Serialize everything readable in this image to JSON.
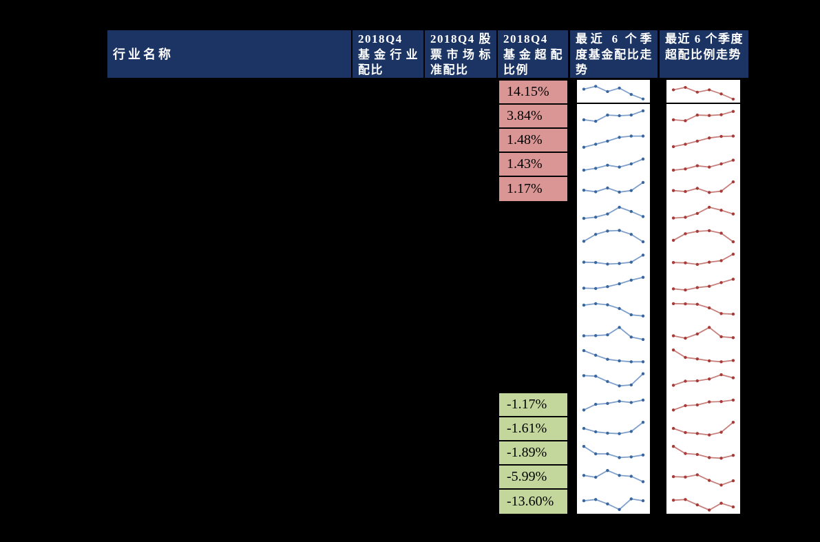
{
  "page": {
    "background": "#000000"
  },
  "table": {
    "header": {
      "industry": "行业名称",
      "fund_alloc": "2018Q4 基金行业配比",
      "market_std": "2018Q4 股票市场标准配比",
      "fund_over": "2018Q4 基金超配比例",
      "fund_trend": "最近 6 个季度基金配比走势",
      "over_trend": "最近 6 个季度超配比例走势"
    }
  },
  "chart_data": {
    "type": "table",
    "columns": [
      "行业名称",
      "2018Q4 基金行业配比",
      "2018Q4 股票市场标准配比",
      "2018Q4 基金超配比例",
      "最近 6 个季度基金配比走势",
      "最近 6 个季度超配比例走势"
    ],
    "sparkline_type": "line",
    "sparkline_points": 6,
    "rows": [
      {
        "overweight_ratio": "14.15%",
        "highlight": "pink",
        "fund_trend": [
          0.62,
          0.78,
          0.48,
          0.68,
          0.32,
          0.06
        ],
        "overweight_trend": [
          0.58,
          0.72,
          0.45,
          0.58,
          0.35,
          0.05
        ]
      },
      {
        "overweight_ratio": "3.84%",
        "highlight": "pink",
        "fund_trend": [
          0.3,
          0.22,
          0.55,
          0.52,
          0.55,
          0.78
        ],
        "overweight_trend": [
          0.3,
          0.25,
          0.55,
          0.53,
          0.57,
          0.75
        ]
      },
      {
        "overweight_ratio": "1.48%",
        "highlight": "pink",
        "fund_trend": [
          0.12,
          0.28,
          0.45,
          0.65,
          0.72,
          0.72
        ],
        "overweight_trend": [
          0.15,
          0.28,
          0.45,
          0.62,
          0.7,
          0.72
        ]
      },
      {
        "overweight_ratio": "1.43%",
        "highlight": "pink",
        "fund_trend": [
          0.18,
          0.28,
          0.45,
          0.35,
          0.52,
          0.78
        ],
        "overweight_trend": [
          0.18,
          0.25,
          0.42,
          0.35,
          0.52,
          0.72
        ]
      },
      {
        "overweight_ratio": "1.17%",
        "highlight": "pink",
        "fund_trend": [
          0.4,
          0.32,
          0.52,
          0.3,
          0.38,
          0.82
        ],
        "overweight_trend": [
          0.38,
          0.33,
          0.5,
          0.28,
          0.35,
          0.85
        ]
      },
      {
        "overweight_ratio": "",
        "highlight": "none",
        "fund_trend": [
          0.18,
          0.25,
          0.42,
          0.78,
          0.55,
          0.28
        ],
        "overweight_trend": [
          0.2,
          0.24,
          0.45,
          0.78,
          0.62,
          0.42
        ]
      },
      {
        "overweight_ratio": "",
        "highlight": "none",
        "fund_trend": [
          0.25,
          0.62,
          0.8,
          0.83,
          0.62,
          0.22
        ],
        "overweight_trend": [
          0.3,
          0.65,
          0.78,
          0.82,
          0.68,
          0.22
        ]
      },
      {
        "overweight_ratio": "",
        "highlight": "none",
        "fund_trend": [
          0.42,
          0.4,
          0.32,
          0.35,
          0.42,
          0.8
        ],
        "overweight_trend": [
          0.4,
          0.38,
          0.3,
          0.42,
          0.5,
          0.85
        ]
      },
      {
        "overweight_ratio": "",
        "highlight": "none",
        "fund_trend": [
          0.32,
          0.3,
          0.4,
          0.55,
          0.75,
          0.9
        ],
        "overweight_trend": [
          0.28,
          0.22,
          0.35,
          0.42,
          0.62,
          0.8
        ]
      },
      {
        "overweight_ratio": "",
        "highlight": "none",
        "fund_trend": [
          0.7,
          0.78,
          0.72,
          0.52,
          0.18,
          0.12
        ],
        "overweight_trend": [
          0.78,
          0.77,
          0.75,
          0.55,
          0.25,
          0.22
        ]
      },
      {
        "overweight_ratio": "",
        "highlight": "none",
        "fund_trend": [
          0.35,
          0.36,
          0.4,
          0.8,
          0.28,
          0.15
        ],
        "overweight_trend": [
          0.35,
          0.22,
          0.45,
          0.8,
          0.3,
          0.25
        ]
      },
      {
        "overweight_ratio": "",
        "highlight": "none",
        "fund_trend": [
          0.85,
          0.6,
          0.38,
          0.3,
          0.25,
          0.25
        ],
        "overweight_trend": [
          0.88,
          0.48,
          0.4,
          0.3,
          0.25,
          0.32
        ]
      },
      {
        "overweight_ratio": "",
        "highlight": "none",
        "fund_trend": [
          0.8,
          0.77,
          0.48,
          0.25,
          0.3,
          0.9
        ],
        "overweight_trend": [
          0.28,
          0.5,
          0.52,
          0.62,
          0.85,
          0.68
        ]
      },
      {
        "overweight_ratio": "-1.17%",
        "highlight": "green",
        "fund_trend": [
          0.25,
          0.55,
          0.6,
          0.72,
          0.65,
          0.78
        ],
        "overweight_trend": [
          0.25,
          0.48,
          0.52,
          0.68,
          0.7,
          0.78
        ]
      },
      {
        "overweight_ratio": "-1.61%",
        "highlight": "green",
        "fund_trend": [
          0.55,
          0.37,
          0.3,
          0.27,
          0.39,
          0.88
        ],
        "overweight_trend": [
          0.55,
          0.33,
          0.28,
          0.2,
          0.35,
          0.88
        ]
      },
      {
        "overweight_ratio": "-1.89%",
        "highlight": "green",
        "fund_trend": [
          0.88,
          0.48,
          0.48,
          0.28,
          0.32,
          0.42
        ],
        "overweight_trend": [
          0.88,
          0.5,
          0.45,
          0.28,
          0.25,
          0.4
        ]
      },
      {
        "overweight_ratio": "-5.99%",
        "highlight": "green",
        "fund_trend": [
          0.62,
          0.52,
          0.88,
          0.62,
          0.57,
          0.28
        ],
        "overweight_trend": [
          0.55,
          0.53,
          0.65,
          0.35,
          0.1,
          0.33
        ]
      },
      {
        "overweight_ratio": "-13.60%",
        "highlight": "green",
        "fund_trend": [
          0.55,
          0.62,
          0.38,
          0.08,
          0.65,
          0.55
        ],
        "overweight_trend": [
          0.58,
          0.62,
          0.33,
          0.05,
          0.42,
          0.22
        ]
      }
    ]
  },
  "colors": {
    "page_bg": "#000000",
    "header_bg": "#1B3463",
    "header_text": "#FFFFFF",
    "positive_bg": "#D99694",
    "negative_bg": "#C3D69B",
    "cell_text": "#000000",
    "panel_bg": "#FFFFFF",
    "border": "#000000",
    "fund_line": "#7E9FCC",
    "fund_marker": "#38669F",
    "over_line": "#C87F7B",
    "over_marker": "#A63B38"
  }
}
